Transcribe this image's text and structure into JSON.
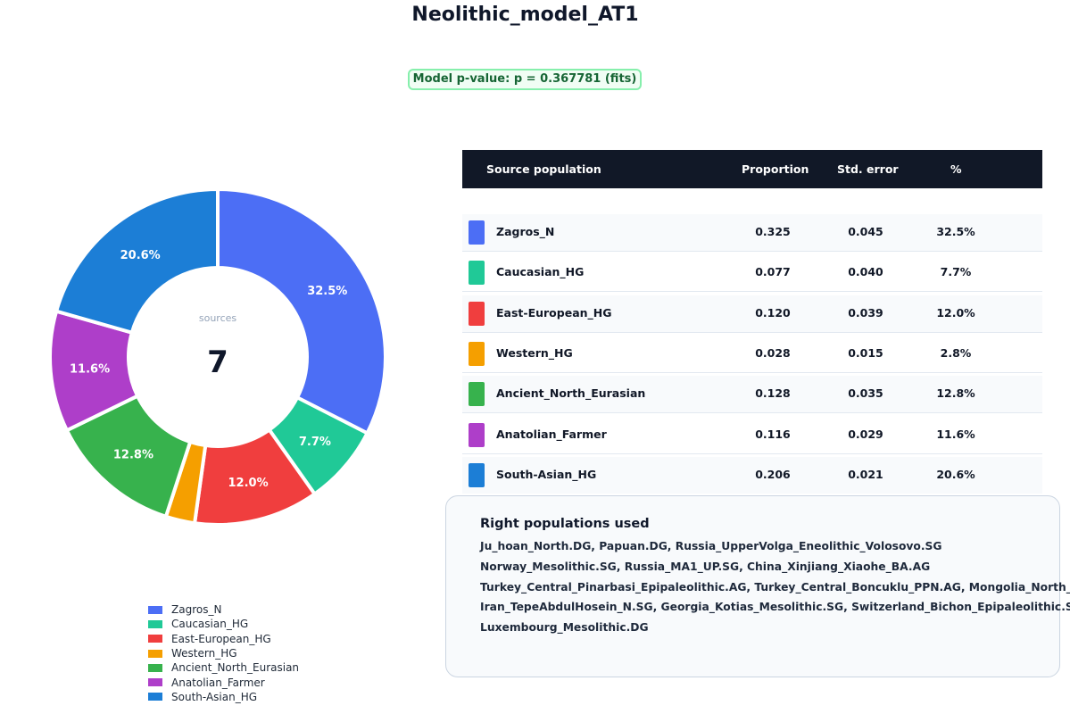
{
  "title": "Neolithic_model_AT1",
  "p_value_text": "Model p-value:  p = 0.367781 (fits)",
  "chart_data": {
    "type": "pie",
    "variant": "donut",
    "center_label": "sources",
    "center_value": "7",
    "labels": [
      "Zagros_N",
      "Caucasian_HG",
      "East-European_HG",
      "Western_HG",
      "Ancient_North_Eurasian",
      "Anatolian_Farmer",
      "South-Asian_HG"
    ],
    "values": [
      32.5,
      7.7,
      12.0,
      2.8,
      12.8,
      11.6,
      20.6
    ],
    "slice_labels": [
      "32.5%",
      "7.7%",
      "12.0%",
      "",
      "12.8%",
      "11.6%",
      "20.6%"
    ],
    "colors": [
      "#4c6ef5",
      "#20c997",
      "#f03e3e",
      "#f59f00",
      "#37b24d",
      "#ae3ec9",
      "#1c7ed6"
    ],
    "legend_position": "bottom"
  },
  "table": {
    "headers": [
      "Source population",
      "Proportion",
      "Std. error",
      "%"
    ],
    "rows": [
      {
        "name": "Zagros_N",
        "proportion": "0.325",
        "std_error": "0.045",
        "percent": "32.5%"
      },
      {
        "name": "Caucasian_HG",
        "proportion": "0.077",
        "std_error": "0.040",
        "percent": "7.7%"
      },
      {
        "name": "East-European_HG",
        "proportion": "0.120",
        "std_error": "0.039",
        "percent": "12.0%"
      },
      {
        "name": "Western_HG",
        "proportion": "0.028",
        "std_error": "0.015",
        "percent": "2.8%"
      },
      {
        "name": "Ancient_North_Eurasian",
        "proportion": "0.128",
        "std_error": "0.035",
        "percent": "12.8%"
      },
      {
        "name": "Anatolian_Farmer",
        "proportion": "0.116",
        "std_error": "0.029",
        "percent": "11.6%"
      },
      {
        "name": "South-Asian_HG",
        "proportion": "0.206",
        "std_error": "0.021",
        "percent": "20.6%"
      }
    ]
  },
  "right_populations": {
    "title": "Right populations used",
    "lines": [
      "Ju_hoan_North.DG, Papuan.DG, Russia_UpperVolga_Eneolithic_Volosovo.SG",
      "Norway_Mesolithic.SG, Russia_MA1_UP.SG, China_Xinjiang_Xiaohe_BA.AG",
      "Turkey_Central_Pinarbasi_Epipaleolithic.AG, Turkey_Central_Boncuklu_PPN.AG, Mongolia_North_N.AG",
      "Iran_TepeAbdulHosein_N.SG, Georgia_Kotias_Mesolithic.SG, Switzerland_Bichon_Epipaleolithic.SG",
      "Luxembourg_Mesolithic.DG"
    ]
  }
}
